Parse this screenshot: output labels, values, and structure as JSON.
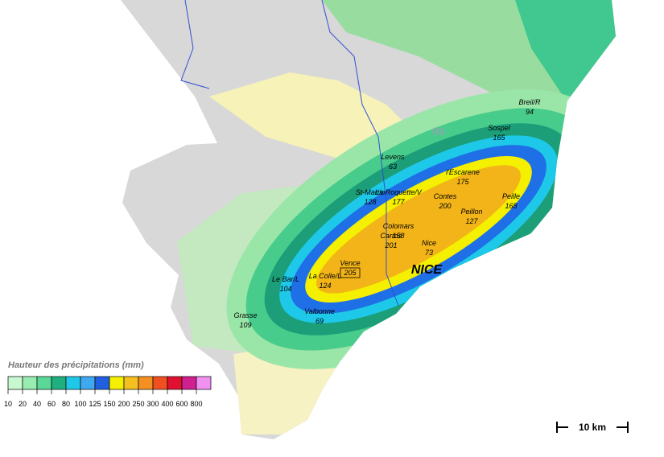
{
  "map_title": "Hauteur des précipitations (mm)",
  "legend_ticks": [
    "10",
    "20",
    "40",
    "60",
    "80",
    "100",
    "125",
    "150",
    "200",
    "250",
    "300",
    "400",
    "600",
    "800"
  ],
  "city": "NICE",
  "department": "06",
  "scale": "10 km",
  "stations": [
    {
      "name": "Breil/R",
      "value": "94"
    },
    {
      "name": "Sospel",
      "value": "165"
    },
    {
      "name": "Levens",
      "value": "63"
    },
    {
      "name": "l'Escarene",
      "value": "175"
    },
    {
      "name": "St-Martin",
      "value": "128"
    },
    {
      "name": "La Roquette/V",
      "value": "177"
    },
    {
      "name": "Contes",
      "value": "200"
    },
    {
      "name": "Peille",
      "value": "168"
    },
    {
      "name": "Peillon",
      "value": "127"
    },
    {
      "name": "Colomars",
      "value": "158"
    },
    {
      "name": "Carros",
      "value": "201"
    },
    {
      "name": "Nice",
      "value": "73"
    },
    {
      "name": "Vence",
      "value": "205"
    },
    {
      "name": "Le Bar/L",
      "value": "104"
    },
    {
      "name": "La Colle/L",
      "value": "124"
    },
    {
      "name": "Grasse",
      "value": "109"
    },
    {
      "name": "Valbonne",
      "value": "69"
    }
  ]
}
